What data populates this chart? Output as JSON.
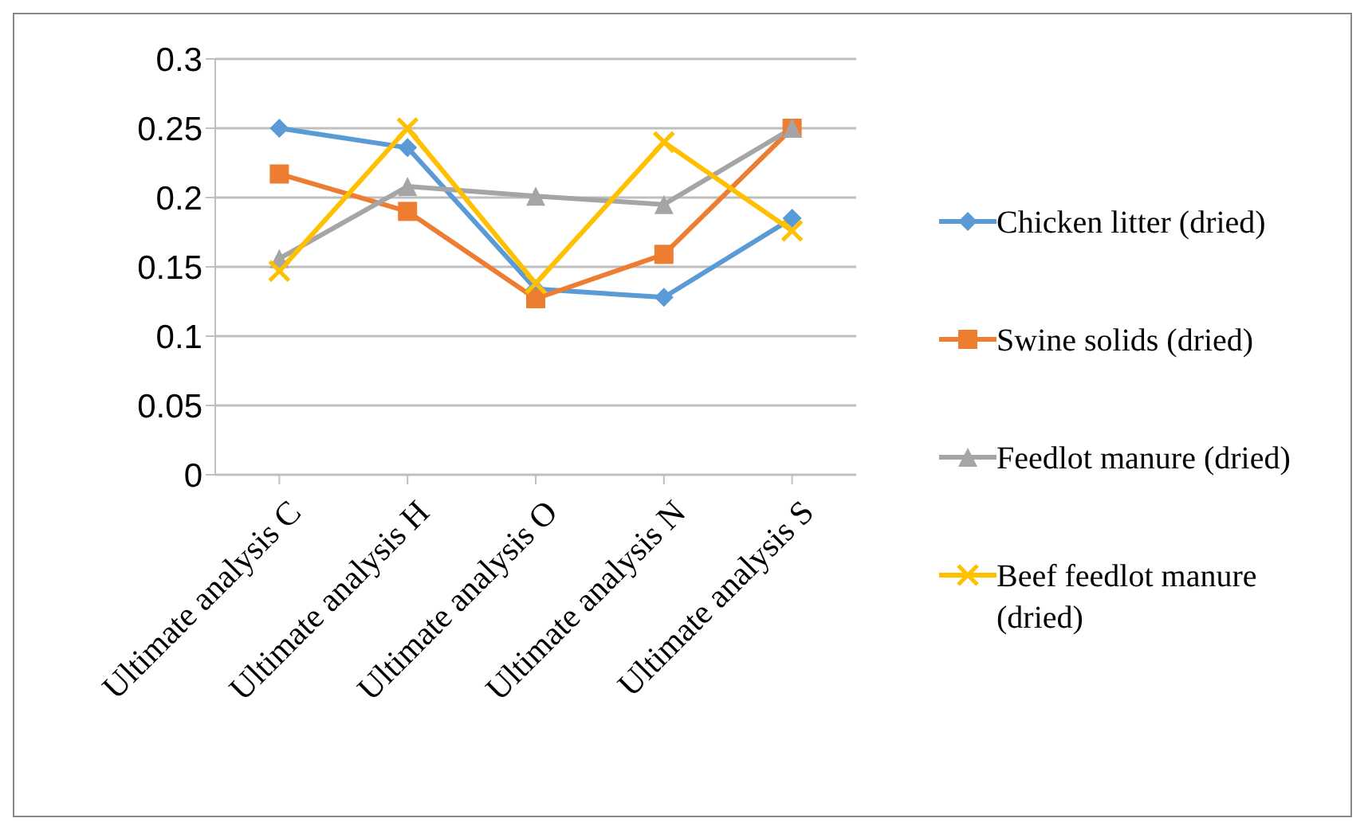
{
  "chart_data": {
    "type": "line",
    "categories": [
      "Ultimate analysis C",
      "Ultimate analysis H",
      "Ultimate analysis O",
      "Ultimate analysis N",
      "Ultimate analysis S"
    ],
    "series": [
      {
        "name": "Chicken litter (dried)",
        "color": "#5b9bd5",
        "marker": "diamond",
        "values": [
          0.25,
          0.236,
          0.134,
          0.128,
          0.185
        ]
      },
      {
        "name": "Swine solids (dried)",
        "color": "#ed7d31",
        "marker": "square",
        "values": [
          0.217,
          0.19,
          0.127,
          0.159,
          0.25
        ]
      },
      {
        "name": "Feedlot manure (dried)",
        "color": "#a5a5a5",
        "marker": "triangle",
        "values": [
          0.156,
          0.208,
          0.201,
          0.195,
          0.25
        ]
      },
      {
        "name": "Beef feedlot manure (dried)",
        "color": "#ffc000",
        "marker": "cross",
        "values": [
          0.147,
          0.25,
          0.138,
          0.24,
          0.176
        ]
      }
    ],
    "ylim": [
      0,
      0.3
    ],
    "yticks": [
      0,
      0.05,
      0.1,
      0.15,
      0.2,
      0.25,
      0.3
    ],
    "grid": "y",
    "legend": "right"
  }
}
